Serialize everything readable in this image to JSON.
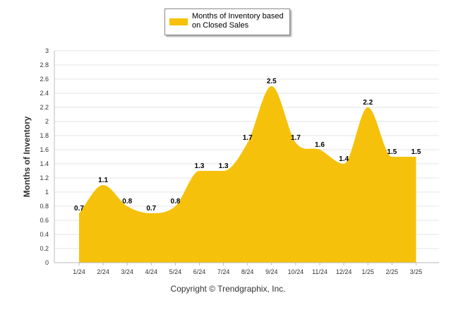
{
  "chart_data": {
    "type": "area",
    "title": "",
    "xlabel": "",
    "ylabel": "Months of Inventory",
    "ylim": [
      0,
      3
    ],
    "y_ticks": [
      "0",
      "0.2",
      "0.4",
      "0.6",
      "0.8",
      "1",
      "1.2",
      "1.4",
      "1.6",
      "1.8",
      "2",
      "2.2",
      "2.4",
      "2.6",
      "2.8",
      "3"
    ],
    "categories": [
      "1/24",
      "2/24",
      "3/24",
      "4/24",
      "5/24",
      "6/24",
      "7/24",
      "8/24",
      "9/24",
      "10/24",
      "11/24",
      "12/24",
      "1/25",
      "2/25",
      "3/25"
    ],
    "series": [
      {
        "name": "Months of Inventory based on Closed Sales",
        "values": [
          0.7,
          1.1,
          0.8,
          0.7,
          0.8,
          1.3,
          1.3,
          1.7,
          2.5,
          1.7,
          1.6,
          1.4,
          2.2,
          1.5,
          1.5
        ],
        "labels": [
          "0.7",
          "1.1",
          "0.8",
          "0.7",
          "0.8",
          "1.3",
          "1.3",
          "1.7",
          "2.5",
          "1.7",
          "1.6",
          "1.4",
          "2.2",
          "1.5",
          "1.5"
        ],
        "color": "#F5C10A"
      }
    ],
    "grid": true,
    "legend_placement": "top-center"
  },
  "legend": {
    "label": "Months of Inventory based on Closed Sales"
  },
  "footer": {
    "copyright": "Copyright © Trendgraphix, Inc."
  }
}
